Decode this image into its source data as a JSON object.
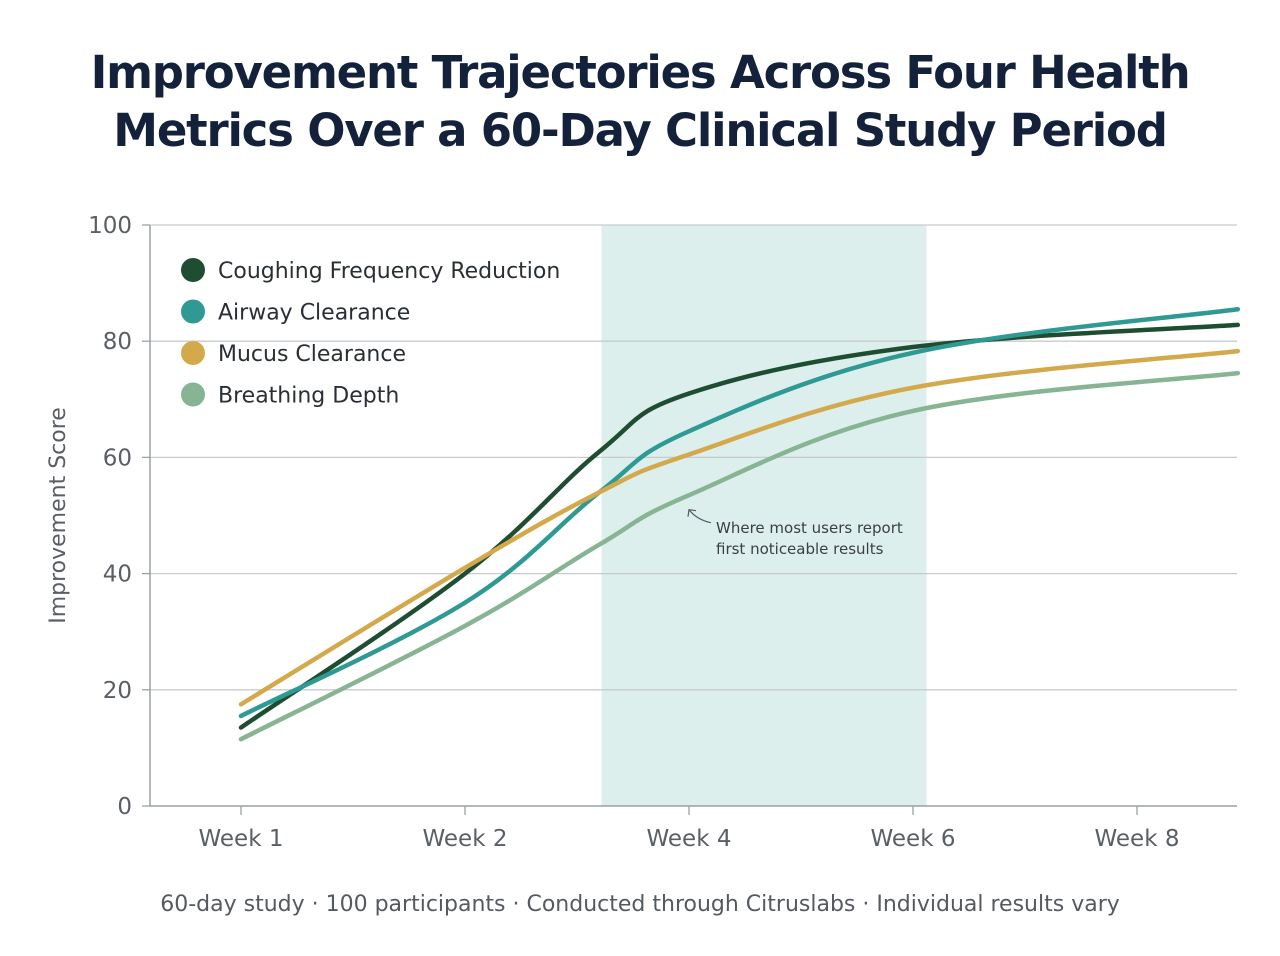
{
  "title": "Improvement Trajectories Across Four Health Metrics Over a 60-Day Clinical Study Period",
  "title_lines": [
    "Improvement Trajectories Across Four Health",
    "Metrics Over a 60-Day Clinical Study Period"
  ],
  "footnote": "60-day study · 100 participants · Conducted through Citruslabs · Individual results vary",
  "chart_data": {
    "type": "line",
    "title": "Improvement Trajectories Across Four Health Metrics Over a 60-Day Clinical Study Period",
    "xlabel": "",
    "ylabel": "Improvement Score",
    "categories": [
      "Week 1",
      "Week 2",
      "Week 4",
      "Week 6",
      "Week 8"
    ],
    "ylim": [
      0,
      100
    ],
    "yticks": [
      0,
      20,
      40,
      60,
      80,
      100
    ],
    "grid": true,
    "legend_position": "top-left",
    "x_sample_positions": [
      0,
      1,
      1.6,
      2,
      3,
      4.45
    ],
    "series": [
      {
        "name": "Coughing Frequency Reduction",
        "color": "#1f4d31",
        "values": [
          13.5,
          40,
          61,
          71,
          79,
          82.8
        ]
      },
      {
        "name": "Airway Clearance",
        "color": "#2f9a94",
        "values": [
          15.5,
          35,
          54,
          64.5,
          78,
          85.5
        ]
      },
      {
        "name": "Mucus Clearance",
        "color": "#d4a94c",
        "values": [
          17.5,
          41,
          54,
          60.5,
          72,
          78.3
        ]
      },
      {
        "name": "Breathing Depth",
        "color": "#87b594",
        "values": [
          11.5,
          31,
          45,
          53.5,
          68,
          74.5
        ]
      }
    ],
    "highlight_band": {
      "x_start": 1.61,
      "x_end": 3.06,
      "color": "#dcefed"
    },
    "annotation": {
      "lines": [
        "Where most users report",
        "first noticeable results"
      ],
      "points_to": {
        "x": 2.0,
        "y": 51
      }
    }
  }
}
